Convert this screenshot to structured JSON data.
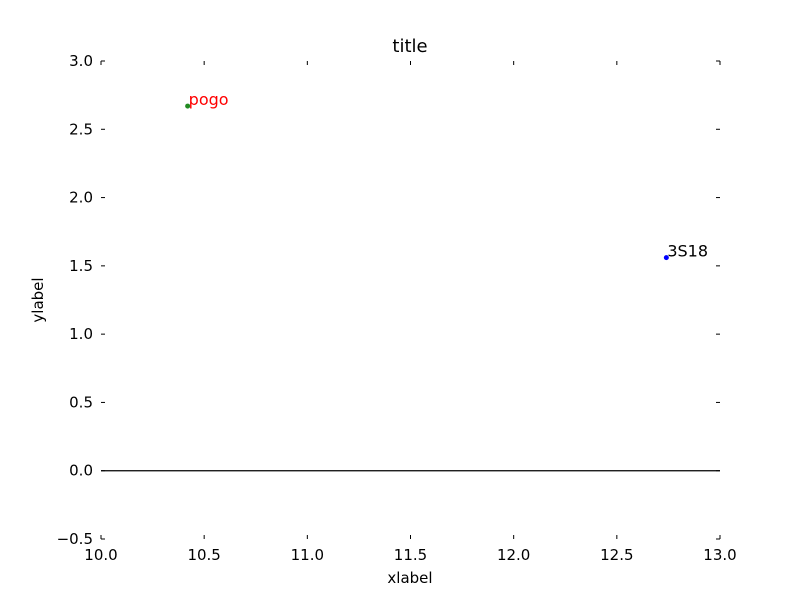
{
  "chart_data": {
    "type": "scatter",
    "title": "title",
    "xlabel": "xlabel",
    "ylabel": "ylabel",
    "xlim": [
      10.0,
      13.0
    ],
    "ylim": [
      -0.5,
      3.0
    ],
    "x_ticks": [
      "10.0",
      "10.5",
      "11.0",
      "11.5",
      "12.0",
      "12.5",
      "13.0"
    ],
    "y_ticks": [
      "−0.5",
      "0.0",
      "0.5",
      "1.0",
      "1.5",
      "2.0",
      "2.5",
      "3.0"
    ],
    "x_tick_values": [
      10.0,
      10.5,
      11.0,
      11.5,
      12.0,
      12.5,
      13.0
    ],
    "y_tick_values": [
      -0.5,
      0.0,
      0.5,
      1.0,
      1.5,
      2.0,
      2.5,
      3.0
    ],
    "hline_y": 0.0,
    "grid": false,
    "points": [
      {
        "label": "pogo",
        "x": 10.42,
        "y": 2.67,
        "color": "#228b22",
        "label_color": "#ff0000"
      },
      {
        "label": "3S18",
        "x": 12.74,
        "y": 1.56,
        "color": "#0000ff",
        "label_color": "#000000"
      }
    ]
  }
}
